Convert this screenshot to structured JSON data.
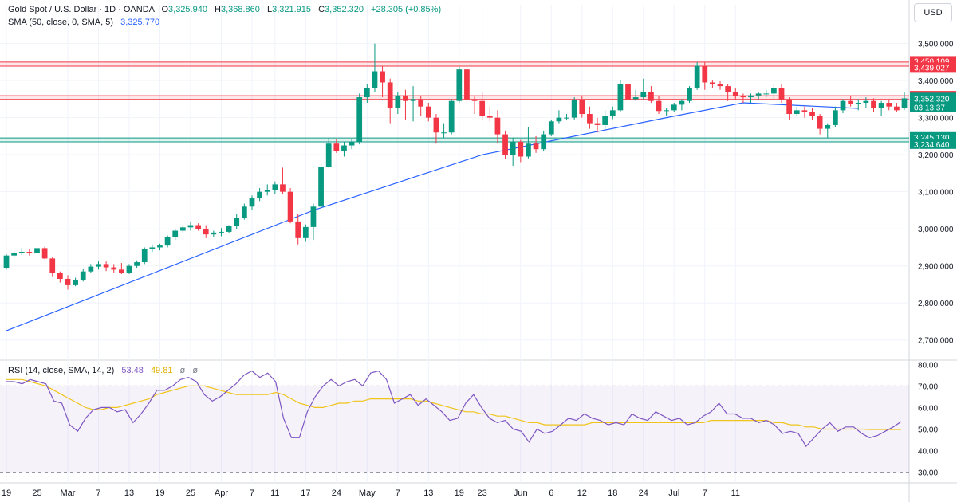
{
  "legend": {
    "symbol": "Gold Spot / U.S. Dollar · 1D · OANDA",
    "open_label": "O",
    "open": "3,325.940",
    "high_label": "H",
    "high": "3,368.860",
    "low_label": "L",
    "low": "3,321.915",
    "close_label": "C",
    "close": "3,352.320",
    "change": "+28.305 (+0.85%)",
    "sma_label": "SMA (50, close, 0, SMA, 5)",
    "sma_value": "3,325.770",
    "rsi_label": "RSI (14, close, SMA, 14, 2)",
    "rsi_value": "53.48",
    "rsi_sma_value": "49.81",
    "rsi_extra1": "ø",
    "rsi_extra2": "ø"
  },
  "currency": "USD",
  "colors": {
    "up": "#089981",
    "down": "#f23645",
    "sma": "#2962ff",
    "rsi": "#7e57c2",
    "rsi_sma": "#f0c419",
    "resistance_band": "#f23645",
    "support_band": "#089981"
  },
  "chart_data": [
    {
      "type": "candlestick",
      "price_axis": {
        "ylim": [
          2650,
          3540
        ],
        "ticks": [
          "2,700.000",
          "2,800.000",
          "2,900.000",
          "3,000.000",
          "3,100.000",
          "3,200.000",
          "3,300.000",
          "3,400.000",
          "3,500.000"
        ],
        "tick_values": [
          2700,
          2800,
          2900,
          3000,
          3100,
          3200,
          3300,
          3400,
          3500
        ]
      },
      "x_axis": {
        "labels": [
          "19",
          "25",
          "Mar",
          "7",
          "13",
          "19",
          "25",
          "Apr",
          "7",
          "11",
          "17",
          "24",
          "May",
          "7",
          "13",
          "19",
          "23",
          "Jun",
          "6",
          "12",
          "18",
          "24",
          "Jul",
          "7",
          "11"
        ],
        "label_bar_index": [
          0,
          4,
          8,
          12,
          16,
          20,
          24,
          28,
          32,
          35,
          39,
          43,
          47,
          51,
          55,
          59,
          62,
          67,
          71,
          75,
          79,
          83,
          87,
          91,
          95
        ]
      },
      "resistance_zones": [
        {
          "upper": 3450.109,
          "lower": 3439.027,
          "upper_label": "3,450.109",
          "lower_label": "3,439.027"
        },
        {
          "upper": 3359.186,
          "lower": 3349.077,
          "upper_label": "3,359.186",
          "lower_label": "3,349.077"
        }
      ],
      "support_zone": {
        "upper": 3245.13,
        "lower": 3234.64,
        "upper_label": "3,245.130",
        "lower_label": "3,234.640"
      },
      "last_price": {
        "value": 3352.32,
        "label": "3,352.320",
        "countdown": "03:13:37"
      },
      "candles": [
        [
          2895,
          2932,
          2890,
          2928
        ],
        [
          2928,
          2940,
          2922,
          2935
        ],
        [
          2935,
          2948,
          2930,
          2938
        ],
        [
          2938,
          2945,
          2928,
          2935
        ],
        [
          2935,
          2955,
          2930,
          2948
        ],
        [
          2948,
          2952,
          2918,
          2920
        ],
        [
          2920,
          2925,
          2870,
          2880
        ],
        [
          2880,
          2885,
          2855,
          2865
        ],
        [
          2865,
          2875,
          2836,
          2848
        ],
        [
          2848,
          2868,
          2845,
          2862
        ],
        [
          2862,
          2892,
          2858,
          2885
        ],
        [
          2885,
          2905,
          2880,
          2898
        ],
        [
          2898,
          2912,
          2890,
          2905
        ],
        [
          2905,
          2912,
          2886,
          2896
        ],
        [
          2896,
          2905,
          2880,
          2890
        ],
        [
          2890,
          2908,
          2878,
          2882
        ],
        [
          2882,
          2905,
          2878,
          2900
        ],
        [
          2900,
          2915,
          2895,
          2910
        ],
        [
          2910,
          2950,
          2905,
          2945
        ],
        [
          2945,
          2958,
          2938,
          2950
        ],
        [
          2950,
          2960,
          2942,
          2955
        ],
        [
          2955,
          2982,
          2950,
          2978
        ],
        [
          2978,
          3000,
          2970,
          2995
        ],
        [
          2995,
          3010,
          2988,
          3004
        ],
        [
          3004,
          3018,
          2995,
          3010
        ],
        [
          3010,
          3015,
          2995,
          3000
        ],
        [
          3000,
          3010,
          2975,
          2985
        ],
        [
          2985,
          2995,
          2978,
          2990
        ],
        [
          2990,
          3002,
          2980,
          2992
        ],
        [
          2992,
          3010,
          2988,
          3008
        ],
        [
          3008,
          3040,
          3000,
          3030
        ],
        [
          3030,
          3068,
          3025,
          3060
        ],
        [
          3060,
          3090,
          3050,
          3082
        ],
        [
          3082,
          3110,
          3075,
          3100
        ],
        [
          3100,
          3120,
          3090,
          3105
        ],
        [
          3105,
          3128,
          3095,
          3120
        ],
        [
          3120,
          3165,
          3095,
          3100
        ],
        [
          3100,
          3110,
          3015,
          3020
        ],
        [
          3020,
          3040,
          2958,
          2975
        ],
        [
          2975,
          3012,
          2965,
          3005
        ],
        [
          3005,
          3068,
          2970,
          3060
        ],
        [
          3060,
          3175,
          3055,
          3168
        ],
        [
          3168,
          3245,
          3165,
          3230
        ],
        [
          3230,
          3242,
          3205,
          3210
        ],
        [
          3210,
          3235,
          3195,
          3225
        ],
        [
          3225,
          3242,
          3215,
          3235
        ],
        [
          3235,
          3365,
          3228,
          3355
        ],
        [
          3355,
          3390,
          3340,
          3380
        ],
        [
          3380,
          3500,
          3370,
          3425
        ],
        [
          3425,
          3438,
          3355,
          3395
        ],
        [
          3395,
          3405,
          3285,
          3325
        ],
        [
          3325,
          3370,
          3310,
          3360
        ],
        [
          3360,
          3375,
          3295,
          3345
        ],
        [
          3345,
          3385,
          3290,
          3350
        ],
        [
          3350,
          3360,
          3305,
          3330
        ],
        [
          3330,
          3340,
          3290,
          3300
        ],
        [
          3300,
          3310,
          3230,
          3260
        ],
        [
          3260,
          3285,
          3245,
          3260
        ],
        [
          3260,
          3350,
          3255,
          3345
        ],
        [
          3345,
          3438,
          3340,
          3430
        ],
        [
          3430,
          3425,
          3340,
          3350
        ],
        [
          3350,
          3360,
          3310,
          3345
        ],
        [
          3345,
          3370,
          3295,
          3305
        ],
        [
          3305,
          3330,
          3290,
          3300
        ],
        [
          3300,
          3320,
          3230,
          3255
        ],
        [
          3255,
          3265,
          3188,
          3200
        ],
        [
          3200,
          3245,
          3170,
          3235
        ],
        [
          3235,
          3240,
          3180,
          3195
        ],
        [
          3195,
          3275,
          3190,
          3230
        ],
        [
          3230,
          3250,
          3205,
          3215
        ],
        [
          3215,
          3265,
          3210,
          3255
        ],
        [
          3255,
          3295,
          3250,
          3290
        ],
        [
          3290,
          3320,
          3285,
          3300
        ],
        [
          3300,
          3310,
          3295,
          3300
        ],
        [
          3300,
          3355,
          3295,
          3348
        ],
        [
          3348,
          3360,
          3300,
          3310
        ],
        [
          3310,
          3330,
          3270,
          3285
        ],
        [
          3285,
          3300,
          3260,
          3280
        ],
        [
          3280,
          3320,
          3268,
          3305
        ],
        [
          3305,
          3330,
          3296,
          3320
        ],
        [
          3320,
          3400,
          3315,
          3390
        ],
        [
          3390,
          3395,
          3345,
          3350
        ],
        [
          3350,
          3375,
          3345,
          3355
        ],
        [
          3355,
          3405,
          3350,
          3370
        ],
        [
          3370,
          3385,
          3340,
          3345
        ],
        [
          3345,
          3360,
          3310,
          3318
        ],
        [
          3318,
          3325,
          3305,
          3320
        ],
        [
          3320,
          3340,
          3315,
          3335
        ],
        [
          3335,
          3350,
          3320,
          3345
        ],
        [
          3345,
          3385,
          3340,
          3380
        ],
        [
          3380,
          3450,
          3375,
          3440
        ],
        [
          3440,
          3450,
          3375,
          3395
        ],
        [
          3395,
          3400,
          3380,
          3390
        ],
        [
          3390,
          3398,
          3375,
          3385
        ],
        [
          3385,
          3390,
          3345,
          3368
        ],
        [
          3368,
          3380,
          3350,
          3358
        ],
        [
          3358,
          3365,
          3340,
          3355
        ],
        [
          3355,
          3365,
          3340,
          3360
        ],
        [
          3360,
          3370,
          3350,
          3365
        ],
        [
          3365,
          3375,
          3355,
          3365
        ],
        [
          3365,
          3390,
          3350,
          3380
        ],
        [
          3380,
          3390,
          3340,
          3350
        ],
        [
          3350,
          3355,
          3295,
          3310
        ],
        [
          3310,
          3330,
          3305,
          3320
        ],
        [
          3320,
          3330,
          3300,
          3315
        ],
        [
          3315,
          3325,
          3295,
          3305
        ],
        [
          3305,
          3310,
          3255,
          3270
        ],
        [
          3270,
          3285,
          3245,
          3280
        ],
        [
          3280,
          3330,
          3275,
          3320
        ],
        [
          3320,
          3350,
          3312,
          3345
        ],
        [
          3345,
          3360,
          3330,
          3338
        ],
        [
          3338,
          3350,
          3320,
          3340
        ],
        [
          3340,
          3355,
          3325,
          3345
        ],
        [
          3345,
          3352,
          3315,
          3325
        ],
        [
          3325,
          3345,
          3305,
          3340
        ],
        [
          3340,
          3350,
          3320,
          3330
        ],
        [
          3330,
          3340,
          3315,
          3320
        ],
        [
          3325,
          3368,
          3321,
          3352
        ]
      ],
      "sma50": [
        2725,
        3050,
        3200,
        3300,
        3340,
        3325
      ],
      "sma50_points_bar_index": [
        0,
        40,
        62,
        86,
        96,
        111
      ]
    },
    {
      "type": "line",
      "name": "RSI",
      "ylim": [
        25,
        82
      ],
      "ticks": [
        "30.00",
        "40.00",
        "50.00",
        "60.00",
        "70.00",
        "80.00"
      ],
      "tick_values": [
        30,
        40,
        50,
        60,
        70,
        80
      ],
      "bands": {
        "upper": 70,
        "middle": 50,
        "lower": 30
      },
      "rsi": [
        72,
        72,
        71,
        73,
        72,
        71,
        63,
        62,
        52,
        49,
        55,
        59,
        60,
        60,
        58,
        59,
        53,
        57,
        62,
        68,
        68,
        70,
        73,
        74,
        72,
        66,
        63,
        65,
        68,
        71,
        75,
        77,
        74,
        76,
        72,
        55,
        46,
        46,
        58,
        65,
        70,
        73,
        70,
        72,
        73,
        70,
        76,
        77,
        73,
        62,
        64,
        66,
        61,
        64,
        61,
        58,
        54,
        55,
        62,
        66,
        60,
        55,
        53,
        54,
        50,
        49,
        44,
        50,
        48,
        49,
        52,
        55,
        54,
        57,
        55,
        54,
        52,
        53,
        52,
        57,
        55,
        54,
        58,
        56,
        54,
        55,
        52,
        53,
        56,
        58,
        62,
        57,
        57,
        55,
        55,
        53,
        54,
        52,
        48,
        49,
        48,
        42,
        46,
        50,
        53,
        49,
        51,
        51,
        48,
        46,
        47,
        49,
        51,
        53.48
      ],
      "rsi_sma": [
        73,
        73,
        73,
        72,
        71,
        70,
        68,
        66,
        64,
        62,
        60,
        59,
        59,
        60,
        60,
        61,
        62,
        63,
        64,
        66,
        67,
        68,
        69,
        70,
        70,
        70,
        69,
        68,
        67,
        66,
        66,
        66,
        66,
        66,
        67,
        66,
        64,
        62,
        61,
        60,
        60,
        61,
        62,
        62,
        63,
        63,
        64,
        64,
        64,
        64,
        64,
        64,
        63,
        63,
        62,
        61,
        60,
        59,
        58,
        58,
        57,
        57,
        56,
        56,
        55,
        54,
        53,
        53,
        52,
        52,
        52,
        52,
        52,
        52,
        53,
        53,
        53,
        53,
        53,
        53,
        53,
        53,
        53,
        53,
        53,
        53,
        53,
        53,
        53,
        54,
        54,
        54,
        54,
        54,
        54,
        54,
        54,
        53,
        53,
        52,
        52,
        51,
        51,
        50,
        50,
        50,
        50,
        50,
        50,
        49.8,
        49.8,
        49.8,
        49.8,
        49.81
      ]
    }
  ]
}
